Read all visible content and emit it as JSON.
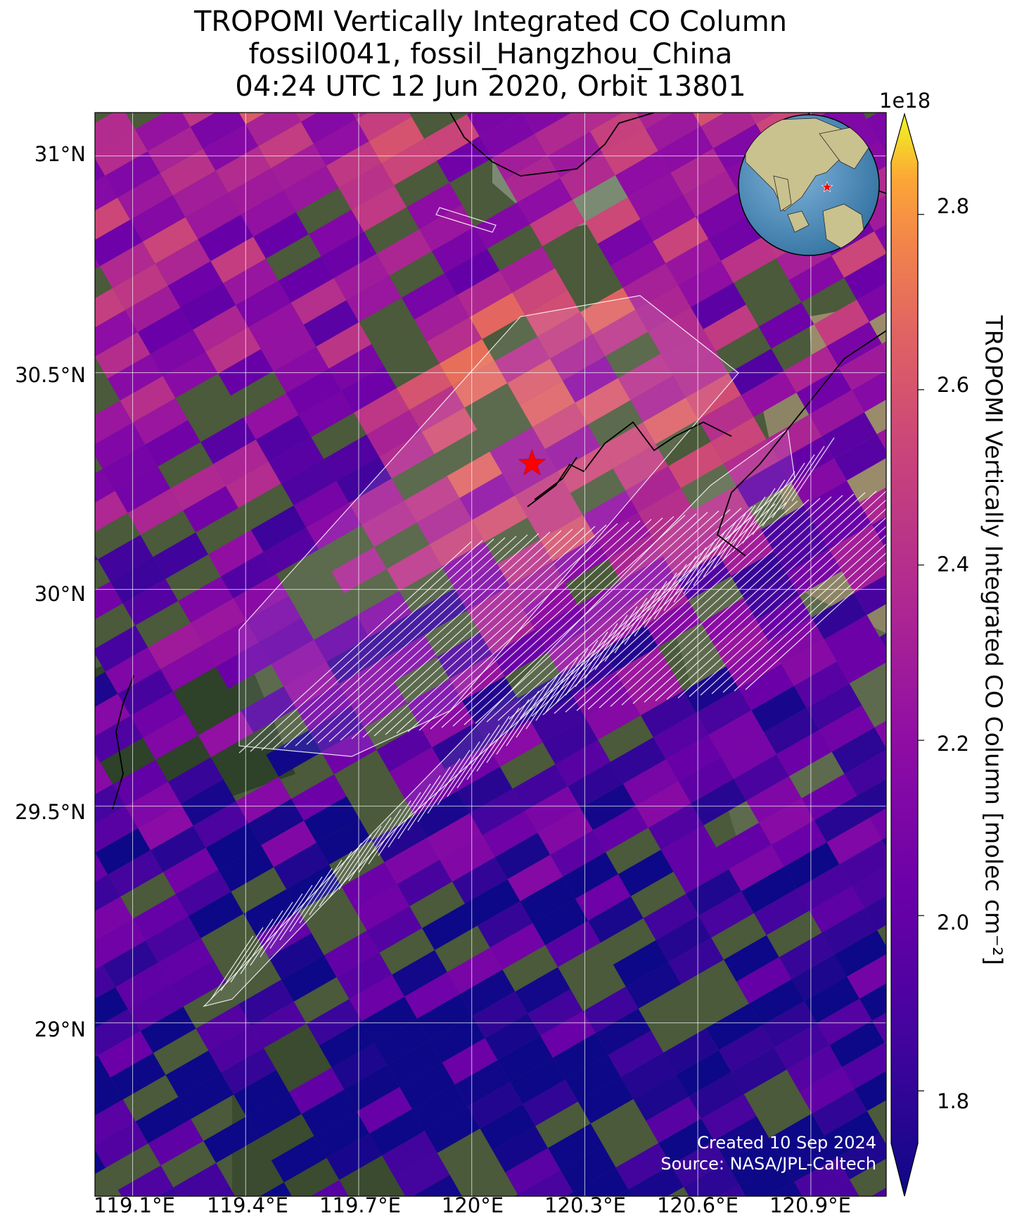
{
  "title": {
    "line1": "TROPOMI Vertically Integrated CO Column",
    "line2": "fossil0041, fossil_Hangzhou_China",
    "line3": "04:24 UTC 12 Jun 2020, Orbit 13801"
  },
  "map": {
    "lon_range": [
      119.0,
      121.1
    ],
    "lat_range": [
      28.6,
      31.1
    ],
    "lon_ticks": [
      "119.1°E",
      "119.4°E",
      "119.7°E",
      "120°E",
      "120.3°E",
      "120.6°E",
      "120.9°E"
    ],
    "lat_ticks": [
      "31°N",
      "30.5°N",
      "30°N",
      "29.5°N",
      "29°N"
    ],
    "target_marker": {
      "lon": 120.16,
      "lat": 30.29,
      "symbol": "red-star"
    },
    "basemap": "satellite-imagery",
    "colormap": "plasma",
    "inset_globe": {
      "center": "East Asia",
      "marker": "red-star"
    }
  },
  "colorbar": {
    "exponent": "1e18",
    "ticks": [
      "2.8",
      "2.6",
      "2.4",
      "2.2",
      "2.0",
      "1.8"
    ],
    "range": [
      1.74,
      2.86
    ],
    "label": "TROPOMI Vertically Integrated CO Column [molec cm⁻²]",
    "extend": "both"
  },
  "credit": {
    "line1": "Created 10 Sep 2024",
    "line2": "Source: NASA/JPL-Caltech"
  },
  "colors": {
    "low": "#0d0887",
    "mid": "#cc4778",
    "high": "#f0f921",
    "target": "#ff0000"
  }
}
